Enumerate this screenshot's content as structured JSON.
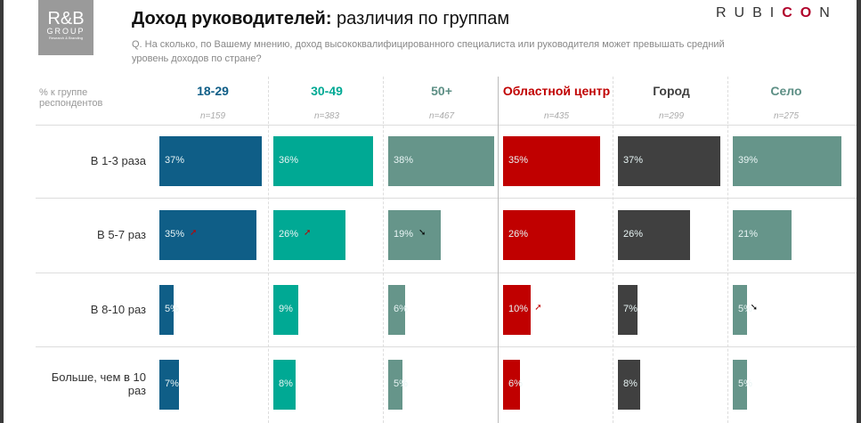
{
  "header": {
    "logo_main": "R&B",
    "logo_group": "GROUP",
    "logo_sub": "Research & Branding",
    "title_bold": "Доход руководителей:",
    "title_rest": " различия по группам",
    "question": "Q. На сколько, по Вашему мнению, доход высококвалифицированного специалиста или руководителя может превышать средний уровень доходов по стране?",
    "brand_a": "RUBI",
    "brand_b": "CO",
    "brand_c": "N"
  },
  "chart_data": {
    "type": "bar",
    "unit_label": "% к группе респондентов",
    "categories": [
      "В 1-3 раза",
      "В 5-7 раз",
      "В 8-10 раз",
      "Больше, чем в 10 раз"
    ],
    "series": [
      {
        "name": "18-29",
        "n": "n=159",
        "color": "#0f5e87",
        "values": [
          37,
          35,
          5,
          7
        ],
        "arrows": [
          "",
          "up",
          "",
          ""
        ]
      },
      {
        "name": "30-49",
        "n": "n=383",
        "color": "#00a994",
        "values": [
          36,
          26,
          9,
          8
        ],
        "arrows": [
          "",
          "up",
          "",
          ""
        ]
      },
      {
        "name": "50+",
        "n": "n=467",
        "color": "#66958a",
        "values": [
          38,
          19,
          6,
          5
        ],
        "arrows": [
          "",
          "down",
          "",
          ""
        ]
      },
      {
        "name": "Областной центр",
        "n": "n=435",
        "color": "#c00000",
        "values": [
          35,
          26,
          10,
          6
        ],
        "arrows": [
          "",
          "",
          "up",
          ""
        ]
      },
      {
        "name": "Город",
        "n": "n=299",
        "color": "#404040",
        "values": [
          37,
          26,
          7,
          8
        ],
        "arrows": [
          "",
          "",
          "",
          ""
        ]
      },
      {
        "name": "Село",
        "n": "n=275",
        "color": "#66958a",
        "values": [
          39,
          21,
          5,
          5
        ],
        "arrows": [
          "",
          "",
          "down",
          ""
        ]
      }
    ]
  }
}
